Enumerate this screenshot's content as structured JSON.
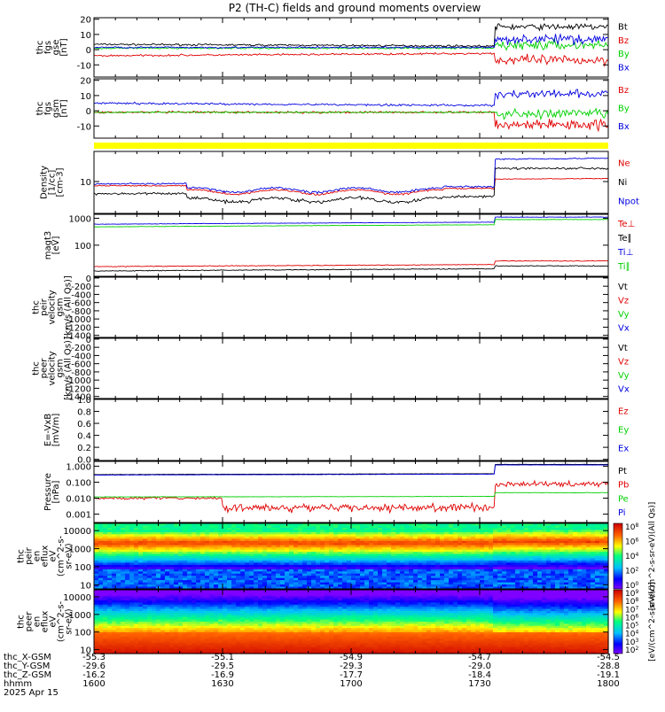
{
  "title": "P2 (TH-C) fields and ground moments overview",
  "colors": {
    "black": "#000000",
    "red": "#e00000",
    "green": "#00d000",
    "blue": "#0000e0",
    "yellow": "#ffff00"
  },
  "chart_data": [
    {
      "type": "line",
      "name": "fgs",
      "ylabel": [
        "thc",
        "fgs",
        "gse",
        "[nT]"
      ],
      "yticks": [
        20,
        10,
        0,
        -10
      ],
      "ylim": [
        -18,
        21
      ],
      "series": [
        {
          "name": "Bt",
          "color": "black"
        },
        {
          "name": "Bz",
          "color": "red"
        },
        {
          "name": "By",
          "color": "green"
        },
        {
          "name": "Bx",
          "color": "blue"
        }
      ]
    },
    {
      "type": "line",
      "name": "fgs_gsm",
      "ylabel": [
        "thc",
        "fgs",
        "gsm",
        "[nT]"
      ],
      "yticks": [
        20,
        10,
        0,
        -10
      ],
      "ylim": [
        -18,
        21
      ],
      "series": [
        {
          "name": "Bz",
          "color": "red"
        },
        {
          "name": "By",
          "color": "green"
        },
        {
          "name": "Bx",
          "color": "blue"
        }
      ]
    },
    {
      "type": "line",
      "name": "density",
      "scale": "log",
      "ylabel": [
        "Density",
        "[1/cc]",
        "[cm-3]"
      ],
      "yticks": [
        10
      ],
      "ylim": [
        1.5,
        60
      ],
      "series": [
        {
          "name": "Ne",
          "color": "red"
        },
        {
          "name": "Ni",
          "color": "black"
        },
        {
          "name": "Npot",
          "color": "blue"
        }
      ]
    },
    {
      "type": "line",
      "name": "temperature",
      "scale": "log",
      "ylabel": [
        "magt3",
        "[eV]"
      ],
      "yticks": [
        1000,
        100
      ],
      "ylim": [
        7,
        1400
      ],
      "series": [
        {
          "name": "Te⊥",
          "color": "red"
        },
        {
          "name": "Te∥",
          "color": "black"
        },
        {
          "name": "Ti⊥",
          "color": "blue"
        },
        {
          "name": "Ti∥",
          "color": "green"
        }
      ]
    },
    {
      "type": "line",
      "name": "peir_velocity",
      "ylabel": [
        "thc",
        "peir",
        "velocity",
        "gsm",
        "[km/s (All Qs)]"
      ],
      "yticks": [
        0,
        -200,
        -400,
        -600,
        -800,
        -1000,
        -1200,
        -1400
      ],
      "ylim": [
        -1450,
        20
      ],
      "series": [
        {
          "name": "Vt",
          "color": "black"
        },
        {
          "name": "Vz",
          "color": "red"
        },
        {
          "name": "Vy",
          "color": "green"
        },
        {
          "name": "Vx",
          "color": "blue"
        }
      ]
    },
    {
      "type": "line",
      "name": "peer_velocity",
      "ylabel": [
        "thc",
        "peer",
        "velocity",
        "gsm",
        "[km/s (All Qs)]"
      ],
      "yticks": [
        0,
        -200,
        -400,
        -600,
        -800,
        -1000,
        -1200,
        -1400
      ],
      "ylim": [
        -1450,
        20
      ],
      "series": [
        {
          "name": "Vt",
          "color": "black"
        },
        {
          "name": "Vz",
          "color": "red"
        },
        {
          "name": "Vy",
          "color": "green"
        },
        {
          "name": "Vx",
          "color": "blue"
        }
      ]
    },
    {
      "type": "line",
      "name": "efield",
      "ylabel": [
        "E=-VxB",
        "[mV/m]"
      ],
      "yticks": [
        1.0,
        0.8,
        0.6,
        0.4,
        0.2,
        0.0
      ],
      "ylim": [
        -0.02,
        1.0
      ],
      "series": [
        {
          "name": "Ez",
          "color": "red"
        },
        {
          "name": "Ey",
          "color": "green"
        },
        {
          "name": "Ex",
          "color": "blue"
        }
      ]
    },
    {
      "type": "line",
      "name": "pressure",
      "scale": "log",
      "ylabel": [
        "Pressure",
        "[nPa]"
      ],
      "yticks": [
        1.0,
        0.1,
        0.01,
        0.001
      ],
      "yticklabels": [
        "1.000",
        "0.100",
        "0.010",
        "0.001"
      ],
      "ylim": [
        0.0003,
        2.0
      ],
      "series": [
        {
          "name": "Pt",
          "color": "black"
        },
        {
          "name": "Pb",
          "color": "red"
        },
        {
          "name": "Pe",
          "color": "green"
        },
        {
          "name": "Pi",
          "color": "blue"
        }
      ]
    },
    {
      "type": "heatmap",
      "name": "peir_spectrogram",
      "scale": "log",
      "ylabel": [
        "thc",
        "peir",
        "en",
        "eflux",
        "eV",
        "(cm^2-s-",
        "sr-eV)"
      ],
      "yticks": [
        10000,
        1000,
        100,
        10
      ],
      "ylim": [
        6,
        25000
      ],
      "colorbar": {
        "ticks": [
          "10^8",
          "10^6",
          "10^4",
          "10^2",
          "10^0"
        ],
        "label": "[eV/(cm^2-s-sr-eV)(All Qs)]"
      }
    },
    {
      "type": "heatmap",
      "name": "peer_spectrogram",
      "scale": "log",
      "ylabel": [
        "thc",
        "peer",
        "en",
        "eflux",
        "eV",
        "(cm^2-s-",
        "sr-eV)"
      ],
      "yticks": [
        10000,
        1000,
        100,
        10
      ],
      "ylim": [
        6,
        25000
      ],
      "colorbar": {
        "ticks": [
          "10^9",
          "10^8",
          "10^7",
          "10^6",
          "10^5",
          "10^4",
          "10^3",
          "10^2"
        ],
        "label": "[eV/(cm^2-s-sr-eV)]"
      }
    }
  ],
  "x_axis": {
    "rows": [
      {
        "label": "thc_X-GSM",
        "values": [
          "-55.3",
          "-55.1",
          "-54.9",
          "-54.7",
          "-54.5"
        ]
      },
      {
        "label": "thc_Y-GSM",
        "values": [
          "-29.6",
          "-29.5",
          "-29.3",
          "-29.0",
          "-28.8"
        ]
      },
      {
        "label": "thc_Z-GSM",
        "values": [
          "-16.2",
          "-16.9",
          "-17.7",
          "-18.4",
          "-19.1"
        ]
      },
      {
        "label": "hhmm",
        "values": [
          "1600",
          "1630",
          "1700",
          "1730",
          "1800"
        ]
      }
    ],
    "date": "2025 Apr 15"
  }
}
